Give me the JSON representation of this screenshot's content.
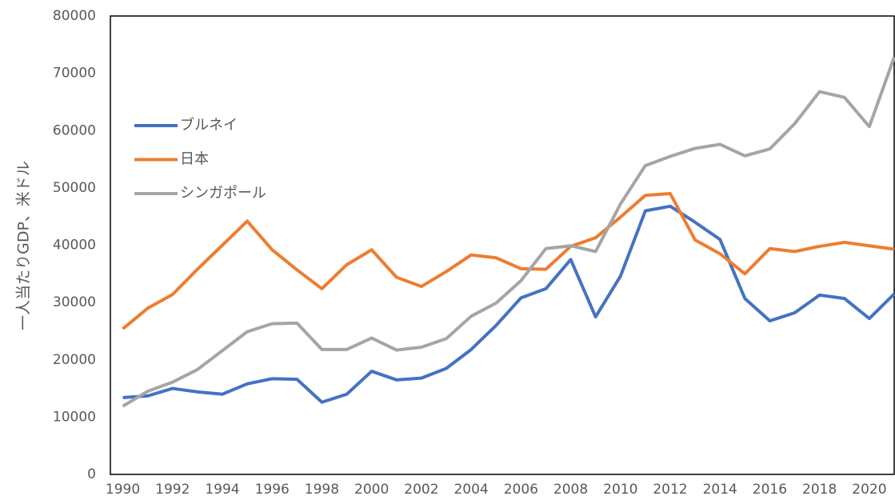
{
  "chart_data": {
    "type": "line",
    "y_label": "一人当たりGDP、米ドル",
    "x": [
      1990,
      1991,
      1992,
      1993,
      1994,
      1995,
      1996,
      1997,
      1998,
      1999,
      2000,
      2001,
      2002,
      2003,
      2004,
      2005,
      2006,
      2007,
      2008,
      2009,
      2010,
      2011,
      2012,
      2013,
      2014,
      2015,
      2016,
      2017,
      2018,
      2019,
      2020,
      2021
    ],
    "xlim": [
      1989.5,
      2021
    ],
    "xticks": [
      1990,
      1992,
      1994,
      1996,
      1998,
      2000,
      2002,
      2004,
      2006,
      2008,
      2010,
      2012,
      2014,
      2016,
      2018,
      2020
    ],
    "ylim": [
      0,
      80000
    ],
    "yticks": [
      0,
      10000,
      20000,
      30000,
      40000,
      50000,
      60000,
      70000,
      80000
    ],
    "grid": false,
    "legend_position": "upper-left",
    "series": [
      {
        "name": "ブルネイ",
        "color": "#4472c4",
        "values": [
          13400,
          13700,
          15000,
          14400,
          14000,
          15800,
          16700,
          16600,
          12600,
          14000,
          18000,
          16500,
          16800,
          18500,
          21800,
          26000,
          30800,
          32400,
          37500,
          27500,
          34600,
          46000,
          46800,
          44000,
          41000,
          30700,
          26800,
          28200,
          31300,
          30700,
          27200,
          31500
        ]
      },
      {
        "name": "日本",
        "color": "#ed7d31",
        "values": [
          25400,
          29000,
          31400,
          35800,
          40000,
          44200,
          39200,
          35700,
          32400,
          36600,
          39200,
          34400,
          32800,
          35400,
          38300,
          37800,
          35900,
          35800,
          39800,
          41300,
          44900,
          48700,
          49000,
          40900,
          38500,
          35000,
          39400,
          38900,
          39800,
          40500,
          39900,
          39300
        ]
      },
      {
        "name": "シンガポール",
        "color": "#a5a5a5",
        "values": [
          11900,
          14500,
          16100,
          18300,
          21600,
          24900,
          26300,
          26400,
          21800,
          21800,
          23800,
          21700,
          22200,
          23700,
          27600,
          29900,
          33800,
          39400,
          39900,
          38900,
          47200,
          53900,
          55500,
          56900,
          57600,
          55600,
          56800,
          61200,
          66800,
          65800,
          60700,
          72800
        ]
      }
    ]
  }
}
